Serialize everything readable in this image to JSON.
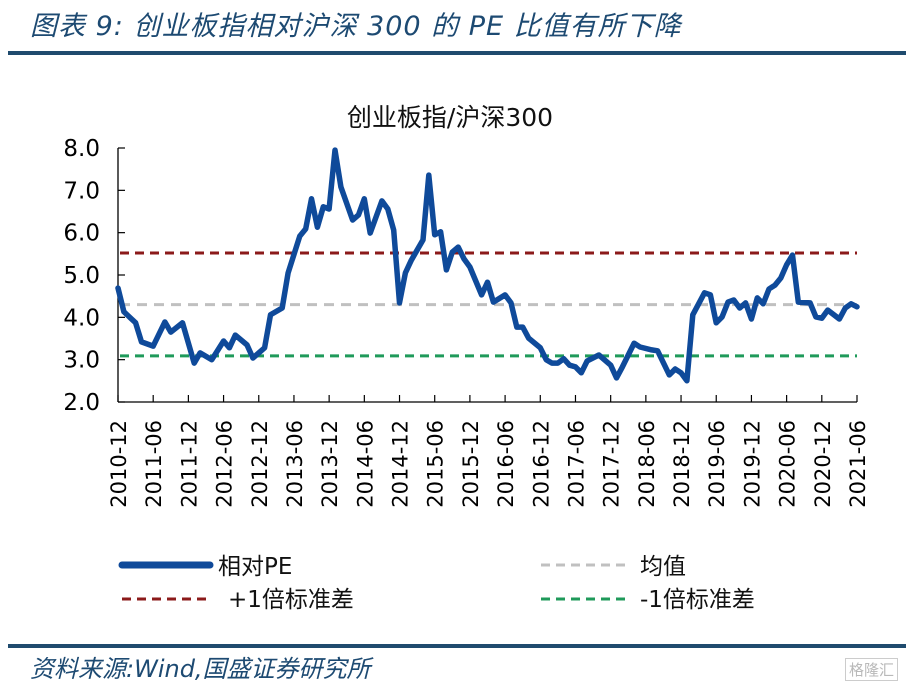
{
  "header": {
    "title": "图表 9:  创业板指相对沪深 300 的 PE 比值有所下降"
  },
  "footer": {
    "source": "资料来源:Wind,国盛证券研究所",
    "watermark": "格隆汇"
  },
  "colors": {
    "series": "#0f4a9a",
    "mean": "#c0c0c0",
    "plus1": "#8b1a1a",
    "minus1": "#1f9a5a",
    "rule": "#1f4b6e"
  },
  "chart_data": {
    "type": "line",
    "title": "创业板指/沪深300",
    "xlabel": "",
    "ylabel": "",
    "ylim": [
      2.0,
      8.0
    ],
    "yticks": [
      "8.0",
      "7.0",
      "6.0",
      "5.0",
      "4.0",
      "3.0",
      "2.0"
    ],
    "xlim": [
      "2010-12",
      "2021-06"
    ],
    "xticks": [
      "2010-12",
      "2011-06",
      "2011-12",
      "2012-06",
      "2012-12",
      "2013-06",
      "2013-12",
      "2014-06",
      "2014-12",
      "2015-06",
      "2015-12",
      "2016-06",
      "2016-12",
      "2017-06",
      "2017-12",
      "2018-06",
      "2018-12",
      "2019-06",
      "2019-12",
      "2020-06",
      "2020-12",
      "2021-06"
    ],
    "grid": false,
    "legend": [
      "相对PE",
      "均值",
      "+1倍标准差",
      "-1倍标准差"
    ],
    "legend_position": "bottom",
    "reference_lines": {
      "mean": 4.3,
      "plus1": 5.52,
      "minus1": 3.09
    },
    "series": [
      {
        "name": "相对PE",
        "x": [
          "2010-12",
          "2011-01",
          "2011-03",
          "2011-04",
          "2011-06",
          "2011-08",
          "2011-09",
          "2011-11",
          "2012-01",
          "2012-02",
          "2012-04",
          "2012-06",
          "2012-07",
          "2012-08",
          "2012-10",
          "2012-11",
          "2013-01",
          "2013-02",
          "2013-04",
          "2013-05",
          "2013-07",
          "2013-08",
          "2013-09",
          "2013-10",
          "2013-11",
          "2013-12",
          "2014-01",
          "2014-02",
          "2014-04",
          "2014-05",
          "2014-06",
          "2014-07",
          "2014-09",
          "2014-10",
          "2014-11",
          "2014-12",
          "2015-01",
          "2015-02",
          "2015-04",
          "2015-05",
          "2015-06",
          "2015-07",
          "2015-08",
          "2015-09",
          "2015-10",
          "2015-11",
          "2015-12",
          "2016-02",
          "2016-03",
          "2016-04",
          "2016-06",
          "2016-07",
          "2016-08",
          "2016-09",
          "2016-10",
          "2016-12",
          "2017-01",
          "2017-02",
          "2017-03",
          "2017-04",
          "2017-05",
          "2017-06",
          "2017-07",
          "2017-08",
          "2017-10",
          "2017-12",
          "2018-01",
          "2018-02",
          "2018-04",
          "2018-05",
          "2018-07",
          "2018-08",
          "2018-10",
          "2018-11",
          "2018-12",
          "2019-01",
          "2019-02",
          "2019-04",
          "2019-05",
          "2019-06",
          "2019-07",
          "2019-08",
          "2019-09",
          "2019-10",
          "2019-11",
          "2019-12",
          "2020-01",
          "2020-02",
          "2020-03",
          "2020-04",
          "2020-05",
          "2020-06",
          "2020-07",
          "2020-08",
          "2020-10",
          "2020-11",
          "2020-12",
          "2021-01",
          "2021-03",
          "2021-04",
          "2021-05",
          "2021-06"
        ],
        "values": [
          4.69,
          4.13,
          3.87,
          3.42,
          3.32,
          3.89,
          3.65,
          3.87,
          2.92,
          3.16,
          3.0,
          3.44,
          3.28,
          3.58,
          3.35,
          3.04,
          3.28,
          4.06,
          4.22,
          5.05,
          5.92,
          6.09,
          6.8,
          6.13,
          6.61,
          6.56,
          7.95,
          7.08,
          6.3,
          6.42,
          6.8,
          5.99,
          6.75,
          6.56,
          6.06,
          4.34,
          5.05,
          5.35,
          5.83,
          7.36,
          5.95,
          6.02,
          5.12,
          5.54,
          5.66,
          5.38,
          5.19,
          4.53,
          4.83,
          4.36,
          4.53,
          4.34,
          3.77,
          3.77,
          3.51,
          3.28,
          3.0,
          2.92,
          2.92,
          3.02,
          2.87,
          2.83,
          2.69,
          2.97,
          3.11,
          2.87,
          2.57,
          2.83,
          3.39,
          3.3,
          3.23,
          3.21,
          2.64,
          2.78,
          2.69,
          2.5,
          4.06,
          4.58,
          4.53,
          3.87,
          4.01,
          4.36,
          4.41,
          4.22,
          4.34,
          3.96,
          4.46,
          4.32,
          4.67,
          4.76,
          4.93,
          5.24,
          5.47,
          4.36,
          4.34,
          4.01,
          3.98,
          4.17,
          3.96,
          4.22,
          4.32,
          4.25
        ]
      }
    ]
  }
}
